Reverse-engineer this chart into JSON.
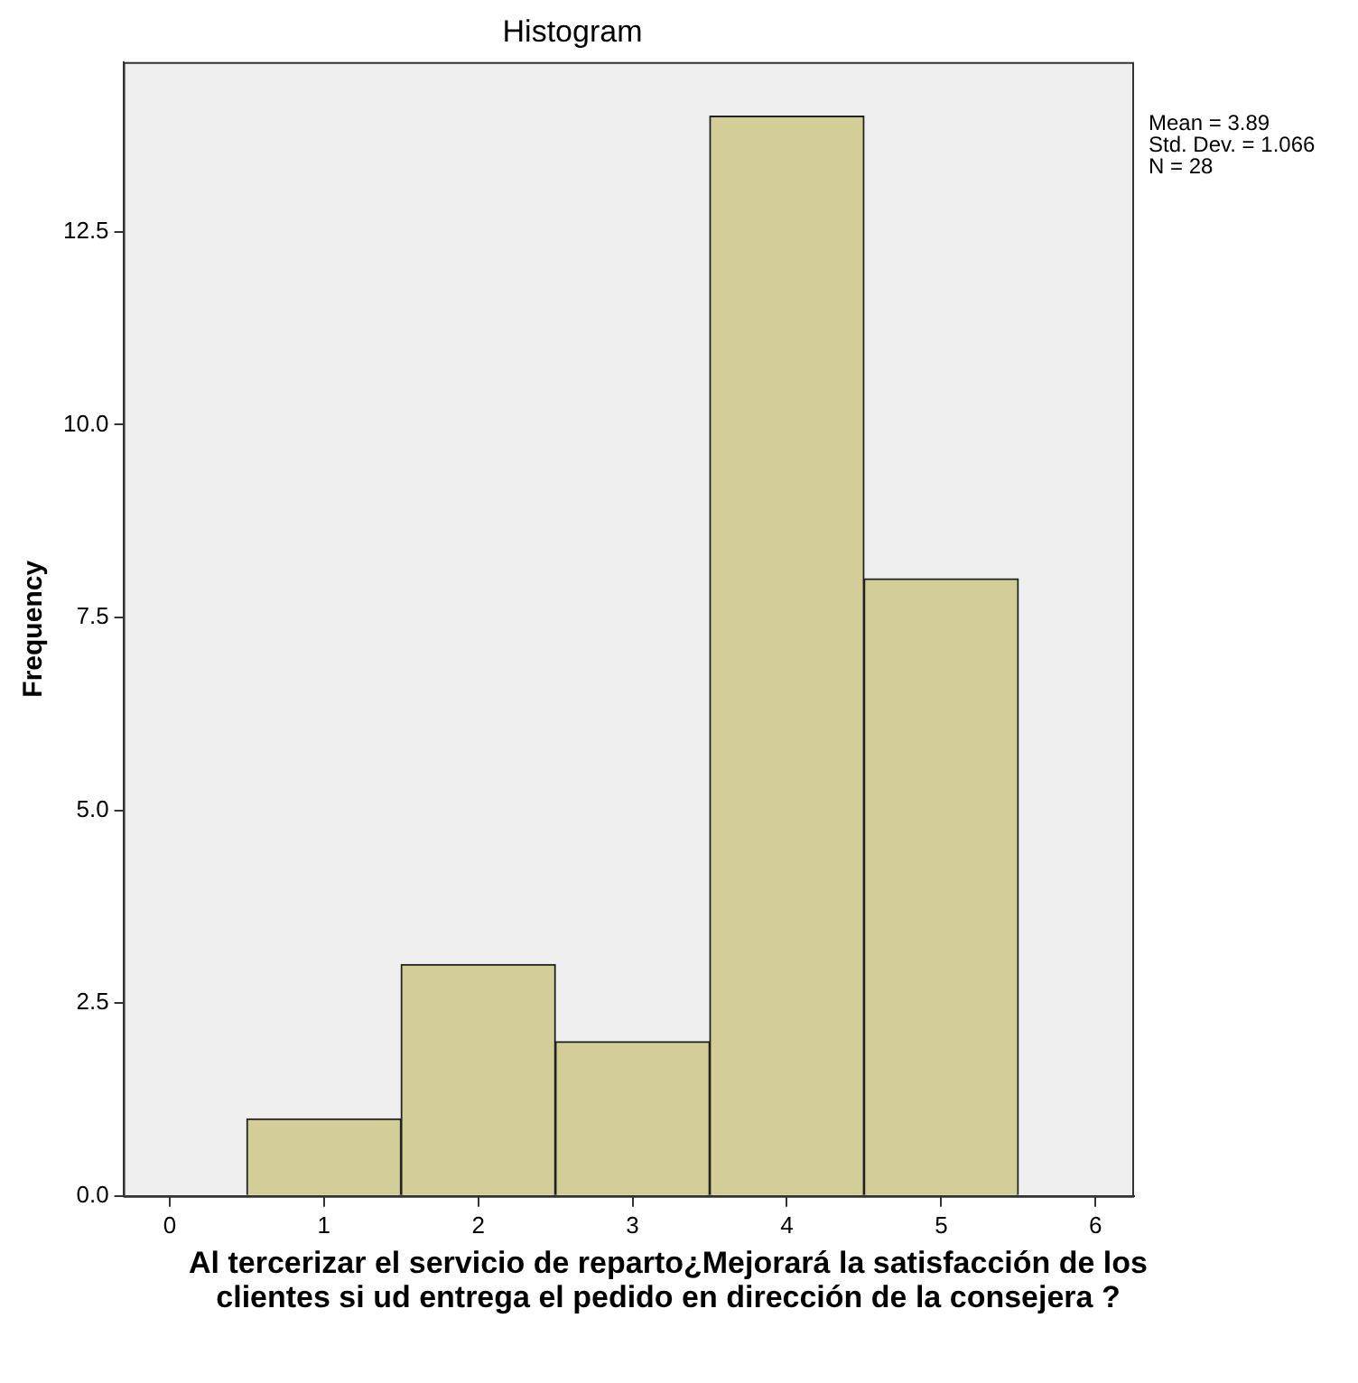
{
  "chart_data": {
    "type": "histogram",
    "title": "Histogram",
    "xlabel": "Al tercerizar el servicio de reparto¿Mejorará la satisfacción de los clientes si ud entrega el pedido en dirección de la consejera ?",
    "ylabel": "Frequency",
    "bins": [
      0.5,
      1.5,
      2.5,
      3.5,
      4.5,
      5.5
    ],
    "values": [
      1,
      3,
      2,
      14,
      8
    ],
    "color": "#d3ce97",
    "xlim": [
      -0.3,
      6.25
    ],
    "xticks": [
      0,
      1,
      2,
      3,
      4,
      5,
      6
    ],
    "ylim": [
      0,
      14.7
    ],
    "yticks": [
      {
        "value": 0,
        "label": "0.0"
      },
      {
        "value": 2.5,
        "label": "2.5"
      },
      {
        "value": 5,
        "label": "5.0"
      },
      {
        "value": 7.5,
        "label": "7.5"
      },
      {
        "value": 10,
        "label": "10.0"
      },
      {
        "value": 12.5,
        "label": "12.5"
      }
    ],
    "grid": false,
    "legend": false,
    "annotations": [
      "Mean = 3.89",
      "Std. Dev. = 1.066",
      "N = 28"
    ]
  }
}
